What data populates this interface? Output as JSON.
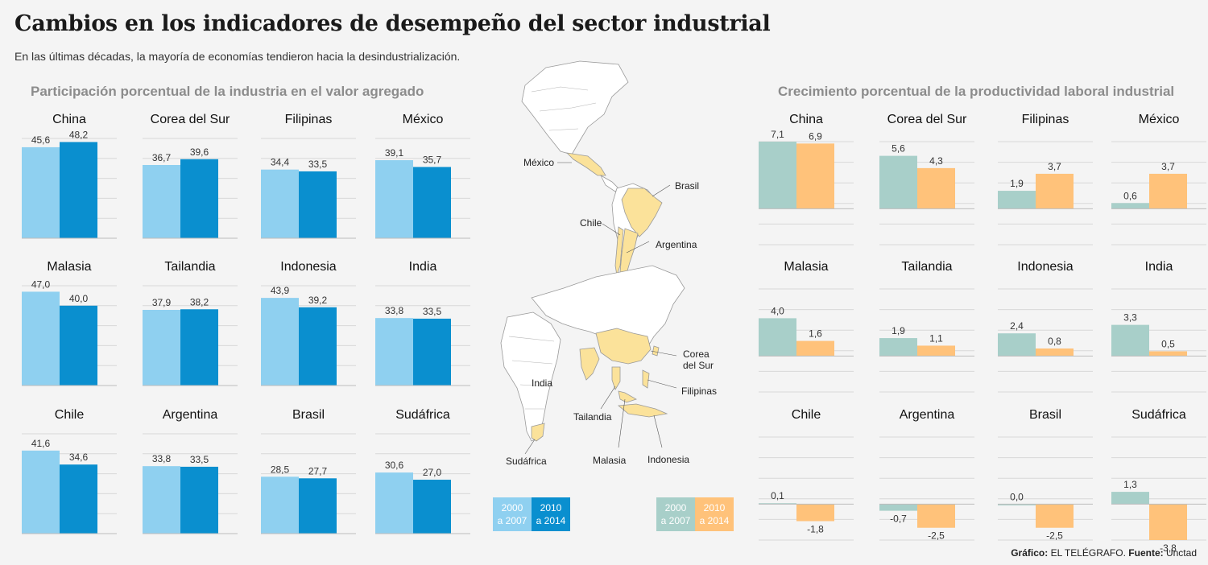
{
  "title": "Cambios en los indicadores de desempeño del sector industrial",
  "subtitle": "En las últimas décadas, la mayoría de economías tendieron hacia la desindustrialización.",
  "left_section_title": "Participación porcentual de la industria en el valor agregado",
  "right_section_title": "Crecimiento porcentual de la productividad laboral industrial",
  "colors": {
    "left_2000": "#8fd0f0",
    "left_2010": "#0a8fcf",
    "right_2000": "#a8cfc9",
    "right_2010": "#ffc27a",
    "map_highlight": "#fbe29a"
  },
  "legend_left": {
    "a_line1": "2000",
    "a_line2": "a 2007",
    "b_line1": "2010",
    "b_line2": "a 2014"
  },
  "legend_right": {
    "a_line1": "2000",
    "a_line2": "a 2007",
    "b_line1": "2010",
    "b_line2": "a 2014"
  },
  "map_labels": {
    "mexico": "México",
    "brasil": "Brasil",
    "chile": "Chile",
    "argentina": "Argentina",
    "india": "India",
    "corea_l1": "Corea",
    "corea_l2": "del Sur",
    "filipinas": "Filipinas",
    "tailandia": "Tailandia",
    "malasia": "Malasia",
    "indonesia": "Indonesia",
    "sudafrica": "Sudáfrica"
  },
  "footer": {
    "grafico_label": "Gráfico:",
    "grafico_value": "EL TELÉGRAFO.",
    "fuente_label": "Fuente:",
    "fuente_value": "Unctad"
  },
  "chart_data": [
    {
      "type": "bar",
      "title": "Participación porcentual de la industria en el valor agregado",
      "series_names": [
        "2000 a 2007",
        "2010 a 2014"
      ],
      "panels": [
        {
          "country": "China",
          "values": [
            45.6,
            48.2
          ],
          "labels": [
            "45,6",
            "48,2"
          ]
        },
        {
          "country": "Corea del Sur",
          "values": [
            36.7,
            39.6
          ],
          "labels": [
            "36,7",
            "39,6"
          ]
        },
        {
          "country": "Filipinas",
          "values": [
            34.4,
            33.5
          ],
          "labels": [
            "34,4",
            "33,5"
          ]
        },
        {
          "country": "México",
          "values": [
            39.1,
            35.7
          ],
          "labels": [
            "39,1",
            "35,7"
          ]
        },
        {
          "country": "Malasia",
          "values": [
            47.0,
            40.0
          ],
          "labels": [
            "47,0",
            "40,0"
          ]
        },
        {
          "country": "Tailandia",
          "values": [
            37.9,
            38.2
          ],
          "labels": [
            "37,9",
            "38,2"
          ]
        },
        {
          "country": "Indonesia",
          "values": [
            43.9,
            39.2
          ],
          "labels": [
            "43,9",
            "39,2"
          ]
        },
        {
          "country": "India",
          "values": [
            33.8,
            33.5
          ],
          "labels": [
            "33,8",
            "33,5"
          ]
        },
        {
          "country": "Chile",
          "values": [
            41.6,
            34.6
          ],
          "labels": [
            "41,6",
            "34,6"
          ]
        },
        {
          "country": "Argentina",
          "values": [
            33.8,
            33.5
          ],
          "labels": [
            "33,8",
            "33,5"
          ]
        },
        {
          "country": "Brasil",
          "values": [
            28.5,
            27.7
          ],
          "labels": [
            "28,5",
            "27,7"
          ]
        },
        {
          "country": "Sudáfrica",
          "values": [
            30.6,
            27.0
          ],
          "labels": [
            "30,6",
            "27,0"
          ]
        }
      ],
      "ylim": [
        0,
        50
      ]
    },
    {
      "type": "bar",
      "title": "Crecimiento porcentual de la productividad laboral industrial",
      "series_names": [
        "2000 a 2007",
        "2010 a 2014"
      ],
      "panels": [
        {
          "country": "China",
          "values": [
            7.1,
            6.9
          ],
          "labels": [
            "7,1",
            "6,9"
          ]
        },
        {
          "country": "Corea del Sur",
          "values": [
            5.6,
            4.3
          ],
          "labels": [
            "5,6",
            "4,3"
          ]
        },
        {
          "country": "Filipinas",
          "values": [
            1.9,
            3.7
          ],
          "labels": [
            "1,9",
            "3,7"
          ]
        },
        {
          "country": "México",
          "values": [
            0.6,
            3.7
          ],
          "labels": [
            "0,6",
            "3,7"
          ]
        },
        {
          "country": "Malasia",
          "values": [
            4.0,
            1.6
          ],
          "labels": [
            "4,0",
            "1,6"
          ]
        },
        {
          "country": "Tailandia",
          "values": [
            1.9,
            1.1
          ],
          "labels": [
            "1,9",
            "1,1"
          ]
        },
        {
          "country": "Indonesia",
          "values": [
            2.4,
            0.8
          ],
          "labels": [
            "2,4",
            "0,8"
          ]
        },
        {
          "country": "India",
          "values": [
            3.3,
            0.5
          ],
          "labels": [
            "3,3",
            "0,5"
          ]
        },
        {
          "country": "Chile",
          "values": [
            0.1,
            -1.8
          ],
          "labels": [
            "0,1",
            "-1,8"
          ]
        },
        {
          "country": "Argentina",
          "values": [
            -0.7,
            -2.5
          ],
          "labels": [
            "-0,7",
            "-2,5"
          ]
        },
        {
          "country": "Brasil",
          "values": [
            0.0,
            -2.5
          ],
          "labels": [
            "0,0",
            "-2,5"
          ]
        },
        {
          "country": "Sudáfrica",
          "values": [
            1.3,
            -3.8
          ],
          "labels": [
            "1,3",
            "-3,8"
          ]
        }
      ]
    }
  ]
}
